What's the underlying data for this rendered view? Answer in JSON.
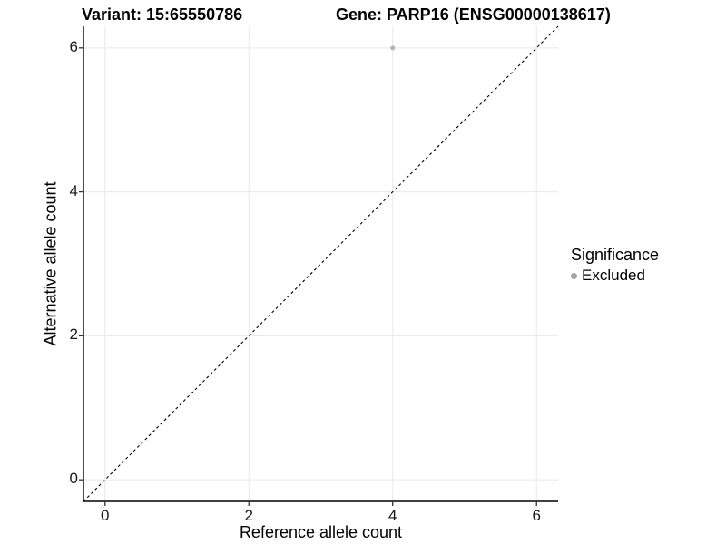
{
  "chart_data": {
    "type": "scatter",
    "title_left": "Variant: 15:65550786",
    "title_right": "Gene: PARP16 (ENSG00000138617)",
    "xlabel": "Reference allele count",
    "ylabel": "Alternative allele count",
    "xlim": [
      -0.3,
      6.3
    ],
    "ylim": [
      -0.3,
      6.3
    ],
    "x_ticks": [
      0,
      2,
      4,
      6
    ],
    "y_ticks": [
      0,
      2,
      4,
      6
    ],
    "grid": {
      "show": true,
      "color": "#e8e8e8"
    },
    "axis_color": "#000000",
    "tick_color": "#333333",
    "background": "#ffffff",
    "series": [
      {
        "name": "Excluded",
        "color": "#b5b5b5",
        "point_radius": 2.5,
        "points": [
          [
            4,
            6
          ]
        ]
      }
    ],
    "identity_line": {
      "slope": 1,
      "intercept": 0,
      "style": "dashed",
      "color": "#000000"
    },
    "legend": {
      "position": "right",
      "title": "Significance",
      "items": [
        {
          "label": "Excluded",
          "color": "#a3a3a3"
        }
      ]
    }
  }
}
